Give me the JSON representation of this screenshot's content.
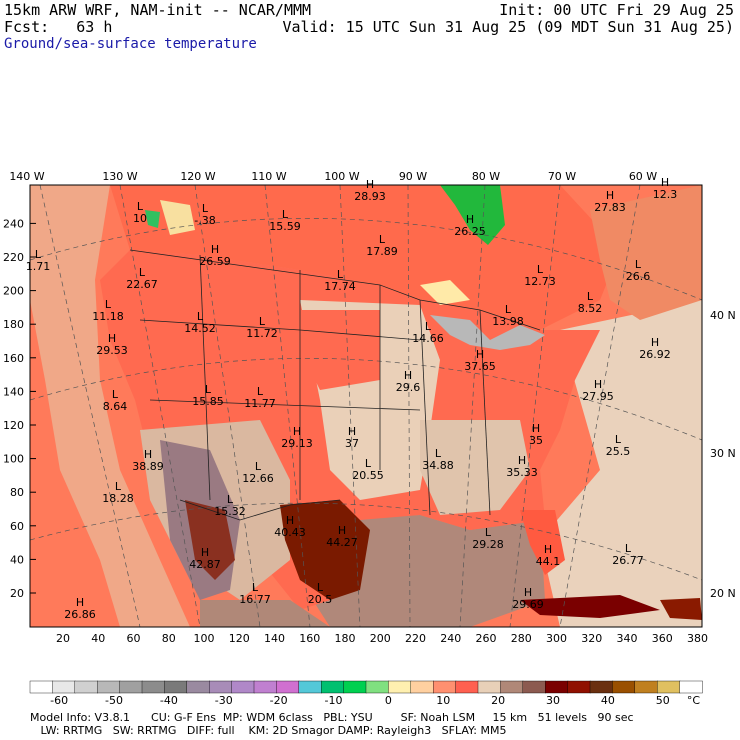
{
  "header": {
    "model_line": "15km ARW WRF, NAM-init -- NCAR/MMM",
    "init_line": "Init: 00 UTC Fri 29 Aug 25",
    "fcst_line": "Fcst:   63 h",
    "valid_line": "Valid: 15 UTC Sun 31 Aug 25 (09 MDT Sun 31 Aug 25)",
    "field_title": "Ground/sea-surface temperature"
  },
  "lon_labels": [
    "140 W",
    "130 W",
    "120 W",
    "110 W",
    "100 W",
    "90 W",
    "80 W",
    "70 W",
    "60 W"
  ],
  "lat_labels": [
    "40 N",
    "30 N",
    "20 N"
  ],
  "y_ticks": [
    "20",
    "40",
    "60",
    "80",
    "100",
    "120",
    "140",
    "160",
    "180",
    "200",
    "220",
    "240"
  ],
  "x_ticks": [
    "20",
    "40",
    "60",
    "80",
    "100",
    "120",
    "140",
    "160",
    "180",
    "200",
    "220",
    "240",
    "260",
    "280",
    "300",
    "320",
    "340",
    "360",
    "380"
  ],
  "extrema": [
    {
      "type": "L",
      "value": "1.71"
    },
    {
      "type": "L",
      "value": "10"
    },
    {
      "type": "L",
      "value": "-.38"
    },
    {
      "type": "L",
      "value": "15.59"
    },
    {
      "type": "H",
      "value": "28.93"
    },
    {
      "type": "H",
      "value": "27.83"
    },
    {
      "type": "H",
      "value": "12.3"
    },
    {
      "type": "H",
      "value": "26.25"
    },
    {
      "type": "L",
      "value": "17.89"
    },
    {
      "type": "H",
      "value": "26.59"
    },
    {
      "type": "L",
      "value": "22.67"
    },
    {
      "type": "L",
      "value": "17.74"
    },
    {
      "type": "L",
      "value": "12.73"
    },
    {
      "type": "L",
      "value": "11.18"
    },
    {
      "type": "L",
      "value": "14.52"
    },
    {
      "type": "L",
      "value": "11.72"
    },
    {
      "type": "L",
      "value": "14.66"
    },
    {
      "type": "L",
      "value": "13.98"
    },
    {
      "type": "L",
      "value": "8.52"
    },
    {
      "type": "L",
      "value": "26.6"
    },
    {
      "type": "H",
      "value": "29.53"
    },
    {
      "type": "H",
      "value": "37.65"
    },
    {
      "type": "H",
      "value": "26.92"
    },
    {
      "type": "L",
      "value": "8.64"
    },
    {
      "type": "L",
      "value": "15.85"
    },
    {
      "type": "L",
      "value": "11.77"
    },
    {
      "type": "H",
      "value": "29.6"
    },
    {
      "type": "H",
      "value": "27.95"
    },
    {
      "type": "H",
      "value": "29.13"
    },
    {
      "type": "H",
      "value": "37"
    },
    {
      "type": "H",
      "value": "35"
    },
    {
      "type": "L",
      "value": "25.5"
    },
    {
      "type": "H",
      "value": "38.89"
    },
    {
      "type": "L",
      "value": "12.66"
    },
    {
      "type": "L",
      "value": "20.55"
    },
    {
      "type": "L",
      "value": "34.88"
    },
    {
      "type": "H",
      "value": "35.33"
    },
    {
      "type": "L",
      "value": "18.28"
    },
    {
      "type": "L",
      "value": "15.32"
    },
    {
      "type": "H",
      "value": "40.43"
    },
    {
      "type": "H",
      "value": "44.27"
    },
    {
      "type": "L",
      "value": "29.28"
    },
    {
      "type": "H",
      "value": "42.87"
    },
    {
      "type": "H",
      "value": "44.1"
    },
    {
      "type": "L",
      "value": "26.77"
    },
    {
      "type": "L",
      "value": "16.77"
    },
    {
      "type": "L",
      "value": "20.5"
    },
    {
      "type": "H",
      "value": "26.86"
    },
    {
      "type": "H",
      "value": "29.69"
    }
  ],
  "colorbar": {
    "labels": [
      "-60",
      "-50",
      "-40",
      "-30",
      "-20",
      "-10",
      "0",
      "10",
      "20",
      "30",
      "40",
      "50"
    ],
    "unit": "°C",
    "colors": [
      "#ffffff",
      "#e8e8e8",
      "#d0d0d0",
      "#b8b8b8",
      "#a0a0a0",
      "#8c8c8c",
      "#7a7a7a",
      "#9a8aa0",
      "#a88cb8",
      "#b088c8",
      "#c080d0",
      "#d070d0",
      "#54c8d8",
      "#00c070",
      "#00d050",
      "#80e080",
      "#fff0b0",
      "#ffd0a0",
      "#ff9070",
      "#ff6050",
      "#e8d0b8",
      "#b08878",
      "#8c5a50",
      "#7a0000",
      "#901000",
      "#6a3010",
      "#9a5000",
      "#c08020",
      "#e0c060",
      "#ffffff"
    ]
  },
  "footer": {
    "line1": "Model Info: V3.8.1      CU: G-F Ens  MP: WDM 6class   PBL: YSU        SF: Noah LSM     15 km   51 levels   90 sec",
    "line2": "   LW: RRTMG   SW: RRTMG   DIFF: full    KM: 2D Smagor DAMP: Rayleigh3   SFLAY: MM5"
  }
}
